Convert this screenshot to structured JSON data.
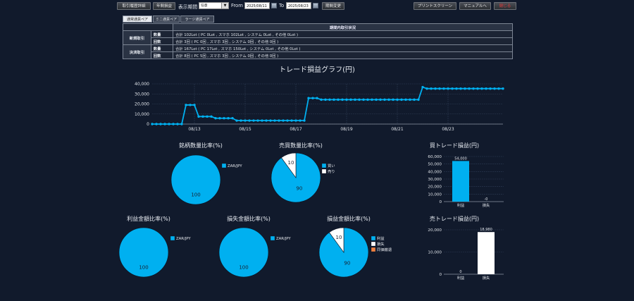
{
  "toolbar": {
    "history_button": "取引履歴詳細",
    "yearly_button": "年間損益",
    "period_label": "表示期間",
    "period_select": "任意",
    "from_label": "From",
    "from_date": "2025/08/11",
    "to_label": "To",
    "to_date": "2025/08/23",
    "change_button": "期間変更",
    "print_button": "プリントスクリーン",
    "manual_button": "マニュアルへ",
    "close_button": "閉じる"
  },
  "tabs": [
    {
      "label": "通常通貨ペア",
      "active": true
    },
    {
      "label": "ミニ通貨ペア",
      "active": false
    },
    {
      "label": "ラージ通貨ペア",
      "active": false
    }
  ],
  "summary": {
    "header": "期間内取引状況",
    "groups": [
      {
        "name": "新規取引",
        "rows": [
          {
            "label": "数量",
            "value": "合計 102Lot ( PC 0Lot , スマホ 102Lot , システム 0Lot , その他 0Lot )"
          },
          {
            "label": "回数",
            "value": "合計 3回 ( PC 0回 , スマホ 3回 , システム 0回 , その他 0回 )"
          }
        ]
      },
      {
        "name": "決済取引",
        "rows": [
          {
            "label": "数量",
            "value": "合計 167Lot ( PC 17Lot , スマホ 150Lot , システム 0Lot , その他 0Lot )"
          },
          {
            "label": "回数",
            "value": "合計 8回 ( PC 5回 , スマホ 3回 , システム 0回 , その他 0回 )"
          }
        ]
      }
    ]
  },
  "colors": {
    "cyan": "#00b0f0",
    "white": "#ffffff",
    "orange": "#f08040",
    "background": "#111a2c"
  },
  "chart_data": [
    {
      "type": "line",
      "title": "トレード損益グラフ(円)",
      "x_ticks": [
        "08/13",
        "08/15",
        "08/17",
        "08/19",
        "08/21",
        "08/23"
      ],
      "y_ticks": [
        "0",
        "10,000",
        "20,000",
        "30,000",
        "40,000"
      ],
      "ylim": [
        0,
        40000
      ],
      "grid": true,
      "values": [
        0,
        0,
        0,
        0,
        0,
        0,
        0,
        0,
        19000,
        19000,
        19000,
        7500,
        7500,
        7500,
        7500,
        5800,
        5800,
        5800,
        5800,
        5800,
        3500,
        3500,
        3500,
        3500,
        3500,
        3500,
        3500,
        3500,
        3500,
        3500,
        3500,
        3500,
        3500,
        3500,
        3500,
        3500,
        3500,
        25800,
        25800,
        25800,
        24300,
        24300,
        24300,
        24300,
        24300,
        24300,
        24300,
        24300,
        24300,
        24300,
        24300,
        24300,
        24300,
        24300,
        24300,
        24300,
        24300,
        24300,
        24300,
        24300,
        24300,
        24300,
        24300,
        24300,
        36800,
        35300,
        35300,
        35300,
        35300,
        35300,
        35300,
        35300,
        35300,
        35300,
        35300,
        35300,
        35300,
        35300,
        35300,
        35300,
        35300,
        35300,
        35300,
        35300
      ],
      "x_tick_index": [
        10,
        22,
        34,
        46,
        58,
        70
      ]
    },
    {
      "type": "pie",
      "title": "銘柄数量比率(%)",
      "slices": [
        {
          "label": "ZAR/JPY",
          "value": 100
        }
      ],
      "legend": "right"
    },
    {
      "type": "pie",
      "title": "売買数量比率(%)",
      "slices": [
        {
          "label": "買い",
          "value": 90
        },
        {
          "label": "売り",
          "value": 10
        }
      ],
      "legend": "right"
    },
    {
      "type": "bar",
      "title": "買トレード損益(円)",
      "categories": [
        "利益",
        "損失"
      ],
      "values": [
        54000,
        0
      ],
      "data_labels": [
        "54,000",
        "-0"
      ],
      "y_ticks": [
        "0",
        "10,000",
        "20,000",
        "30,000",
        "40,000",
        "50,000",
        "60,000"
      ],
      "ylim": [
        0,
        60000
      ]
    },
    {
      "type": "pie",
      "title": "利益金額比率(%)",
      "slices": [
        {
          "label": "ZAR/JPY",
          "value": 100
        }
      ],
      "legend": "right"
    },
    {
      "type": "pie",
      "title": "損失金額比率(%)",
      "slices": [
        {
          "label": "ZAR/JPY",
          "value": 100
        }
      ],
      "legend": "right"
    },
    {
      "type": "pie",
      "title": "損益金額比率(%)",
      "slices": [
        {
          "label": "利益",
          "value": 90
        },
        {
          "label": "損失",
          "value": 10
        },
        {
          "label": "同価撤退",
          "value": 0
        }
      ],
      "legend": "right"
    },
    {
      "type": "bar",
      "title": "売トレード損益(円)",
      "categories": [
        "利益",
        "損失"
      ],
      "values": [
        0,
        18980
      ],
      "data_labels": [
        "0",
        "18,980"
      ],
      "y_ticks": [
        "0",
        "10,000",
        "20,000"
      ],
      "ylim": [
        0,
        20000
      ]
    }
  ]
}
